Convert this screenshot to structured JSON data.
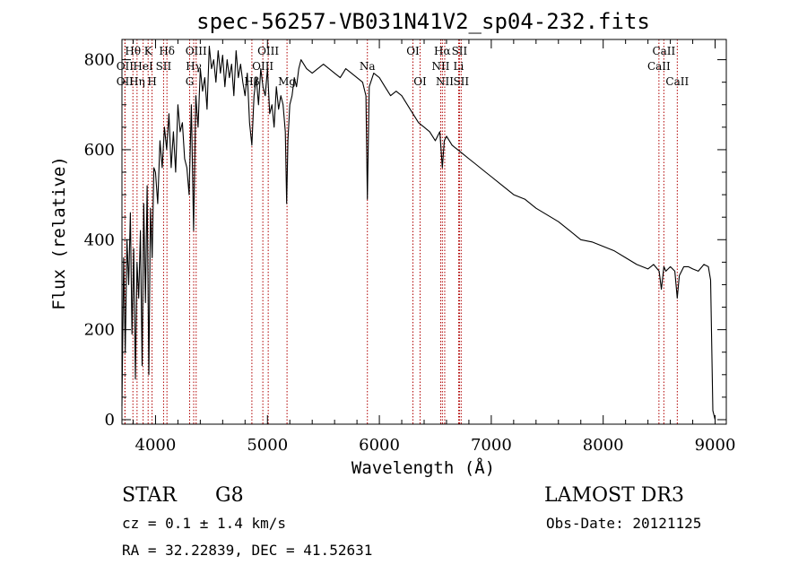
{
  "chart_data": {
    "type": "line",
    "title": "spec-56257-VB031N41V2_sp04-232.fits",
    "xlabel": "Wavelength (Å)",
    "ylabel": "Flux (relative)",
    "xlim": [
      3700,
      9100
    ],
    "ylim": [
      -10,
      845
    ],
    "x_ticks": [
      {
        "value": 4000,
        "label": "4000"
      },
      {
        "value": 5000,
        "label": "5000"
      },
      {
        "value": 6000,
        "label": "6000"
      },
      {
        "value": 7000,
        "label": "7000"
      },
      {
        "value": 8000,
        "label": "8000"
      },
      {
        "value": 9000,
        "label": "9000"
      }
    ],
    "y_ticks": [
      {
        "value": 0,
        "label": "0"
      },
      {
        "value": 200,
        "label": "200"
      },
      {
        "value": 400,
        "label": "400"
      },
      {
        "value": 600,
        "label": "600"
      },
      {
        "value": 800,
        "label": "800"
      }
    ],
    "series": [
      {
        "name": "flux",
        "x": [
          3700,
          3715,
          3730,
          3745,
          3760,
          3775,
          3790,
          3805,
          3820,
          3835,
          3850,
          3865,
          3880,
          3895,
          3910,
          3925,
          3940,
          3955,
          3970,
          3985,
          4000,
          4020,
          4040,
          4060,
          4080,
          4100,
          4120,
          4140,
          4160,
          4180,
          4200,
          4220,
          4240,
          4260,
          4280,
          4300,
          4320,
          4340,
          4360,
          4380,
          4400,
          4420,
          4440,
          4460,
          4480,
          4500,
          4520,
          4540,
          4560,
          4580,
          4600,
          4620,
          4640,
          4660,
          4680,
          4700,
          4720,
          4740,
          4760,
          4780,
          4800,
          4820,
          4840,
          4861,
          4880,
          4900,
          4920,
          4940,
          4960,
          4980,
          5000,
          5020,
          5040,
          5060,
          5080,
          5100,
          5120,
          5140,
          5160,
          5172,
          5183,
          5200,
          5220,
          5240,
          5260,
          5280,
          5300,
          5350,
          5400,
          5450,
          5500,
          5550,
          5600,
          5650,
          5700,
          5750,
          5800,
          5850,
          5880,
          5893,
          5910,
          5950,
          6000,
          6050,
          6100,
          6150,
          6200,
          6250,
          6300,
          6350,
          6400,
          6450,
          6500,
          6540,
          6563,
          6580,
          6600,
          6650,
          6700,
          6750,
          6800,
          6850,
          6900,
          6950,
          7000,
          7100,
          7200,
          7300,
          7400,
          7500,
          7600,
          7700,
          7800,
          7900,
          8000,
          8100,
          8200,
          8300,
          8400,
          8450,
          8500,
          8520,
          8542,
          8560,
          8600,
          8640,
          8662,
          8680,
          8720,
          8760,
          8800,
          8850,
          8900,
          8940,
          8960,
          8980,
          9000
        ],
        "y": [
          30,
          360,
          150,
          400,
          300,
          460,
          190,
          380,
          90,
          350,
          270,
          420,
          120,
          480,
          260,
          520,
          100,
          470,
          360,
          560,
          550,
          480,
          620,
          560,
          650,
          600,
          680,
          560,
          640,
          550,
          700,
          640,
          660,
          580,
          560,
          500,
          700,
          420,
          720,
          650,
          780,
          730,
          760,
          690,
          830,
          780,
          800,
          750,
          820,
          770,
          810,
          740,
          800,
          760,
          790,
          720,
          820,
          760,
          790,
          750,
          720,
          770,
          660,
          610,
          720,
          760,
          700,
          780,
          740,
          720,
          780,
          680,
          700,
          650,
          740,
          690,
          720,
          700,
          640,
          480,
          620,
          700,
          720,
          760,
          740,
          780,
          800,
          780,
          770,
          780,
          790,
          780,
          770,
          760,
          780,
          770,
          760,
          750,
          720,
          490,
          740,
          770,
          760,
          740,
          720,
          730,
          720,
          700,
          680,
          660,
          650,
          640,
          620,
          640,
          560,
          620,
          630,
          610,
          600,
          590,
          580,
          570,
          560,
          550,
          540,
          520,
          500,
          490,
          470,
          455,
          440,
          420,
          400,
          395,
          385,
          375,
          360,
          345,
          335,
          345,
          330,
          290,
          340,
          330,
          340,
          330,
          270,
          320,
          340,
          340,
          335,
          330,
          345,
          340,
          310,
          20,
          0
        ]
      }
    ],
    "spectral_lines": [
      {
        "name": "Hθ",
        "wavelength": 3798,
        "label_row": 1
      },
      {
        "name": "OII",
        "wavelength": 3727,
        "label_row": 2
      },
      {
        "name": "OII",
        "wavelength": 3727,
        "label_row": 3
      },
      {
        "name": "K",
        "wavelength": 3934,
        "label_row": 1
      },
      {
        "name": "HeI",
        "wavelength": 3889,
        "label_row": 2
      },
      {
        "name": "Hη",
        "wavelength": 3835,
        "label_row": 3
      },
      {
        "name": "SII",
        "wavelength": 4072,
        "label_row": 2
      },
      {
        "name": "H",
        "wavelength": 3969,
        "label_row": 3
      },
      {
        "name": "Hδ",
        "wavelength": 4102,
        "label_row": 1
      },
      {
        "name": "OIII",
        "wavelength": 4363,
        "label_row": 1
      },
      {
        "name": "Hγ",
        "wavelength": 4341,
        "label_row": 2
      },
      {
        "name": "G",
        "wavelength": 4305,
        "label_row": 3
      },
      {
        "name": "OIII",
        "wavelength": 5007,
        "label_row": 1
      },
      {
        "name": "OIII",
        "wavelength": 4959,
        "label_row": 2
      },
      {
        "name": "Hβ",
        "wavelength": 4861,
        "label_row": 3
      },
      {
        "name": "Mg",
        "wavelength": 5175,
        "label_row": 3
      },
      {
        "name": "Na",
        "wavelength": 5893,
        "label_row": 2
      },
      {
        "name": "OI",
        "wavelength": 6300,
        "label_row": 1
      },
      {
        "name": "OI",
        "wavelength": 6364,
        "label_row": 3
      },
      {
        "name": "Hα",
        "wavelength": 6563,
        "label_row": 1
      },
      {
        "name": "SII",
        "wavelength": 6716,
        "label_row": 1
      },
      {
        "name": "NII",
        "wavelength": 6548,
        "label_row": 2
      },
      {
        "name": "Li",
        "wavelength": 6708,
        "label_row": 2
      },
      {
        "name": "NII",
        "wavelength": 6584,
        "label_row": 3
      },
      {
        "name": "SII",
        "wavelength": 6731,
        "label_row": 3
      },
      {
        "name": "CaII",
        "wavelength": 8542,
        "label_row": 1
      },
      {
        "name": "CaII",
        "wavelength": 8498,
        "label_row": 2
      },
      {
        "name": "CaII",
        "wavelength": 8662,
        "label_row": 3
      }
    ],
    "line_color": "#000000",
    "marker_color": "#b00000"
  },
  "info": {
    "object_class": "STAR",
    "subclass": "G8",
    "survey": "LAMOST DR3",
    "redshift": "cz = 0.1 ± 1.4 km/s",
    "obs_date": "Obs-Date: 20121125",
    "coords": "RA =  32.22839, DEC =  41.52631"
  }
}
